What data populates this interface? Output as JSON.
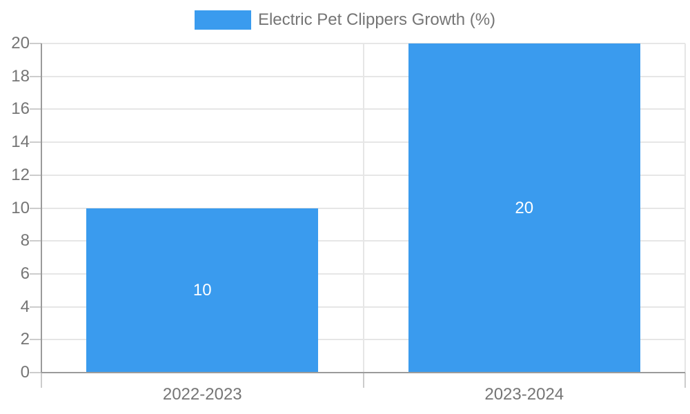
{
  "chart_data": {
    "type": "bar",
    "title": "Electric Pet Clippers Growth (%)",
    "legend_position": "top",
    "categories": [
      "2022-2023",
      "2023-2024"
    ],
    "values": [
      10,
      20
    ],
    "data_labels": [
      "10",
      "20"
    ],
    "xlabel": "",
    "ylabel": "",
    "ylim": [
      0,
      20
    ],
    "yticks": [
      0,
      2,
      4,
      6,
      8,
      10,
      12,
      14,
      16,
      18,
      20
    ],
    "grid": true,
    "colors": {
      "bar": "#3a9bee",
      "grid": "#e6e6e6",
      "tick": "#cccccc",
      "axis": "#9b9b9b",
      "tick_label": "#757575",
      "legend_text": "#757575",
      "data_label": "#ffffff",
      "background": "#ffffff"
    }
  }
}
